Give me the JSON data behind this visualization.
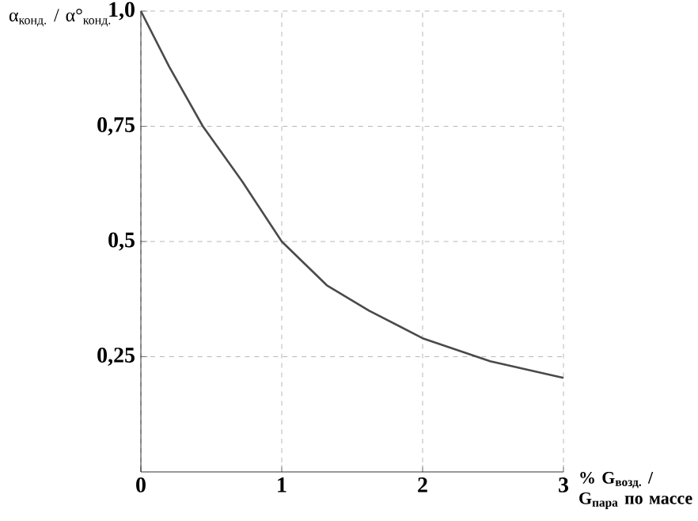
{
  "chart_data": {
    "type": "line",
    "ylabel": "α$_{конд.}$ / α°$_{конд.}$",
    "xlabel": "% G$_{возд.}$ / G$_{пара}$ по массе",
    "x": [
      0,
      0.2,
      0.44,
      0.72,
      1,
      1.32,
      1.62,
      2,
      2.48,
      3
    ],
    "values": [
      1,
      0.88,
      0.75,
      0.63,
      0.5,
      0.405,
      0.35,
      0.29,
      0.24,
      0.204
    ],
    "color": "#4a4a4a",
    "xlim": [
      0,
      3
    ],
    "ylim": [
      0,
      1
    ],
    "xticks": [
      0,
      1,
      2,
      3
    ],
    "yticks": [
      {
        "value": 0.25,
        "label": "0,25"
      },
      {
        "value": 0.5,
        "label": "0,5"
      },
      {
        "value": 0.75,
        "label": "0,75"
      },
      {
        "value": 1,
        "label": "1,0"
      }
    ],
    "grid": true,
    "marker": "none",
    "line_style": "solid"
  }
}
